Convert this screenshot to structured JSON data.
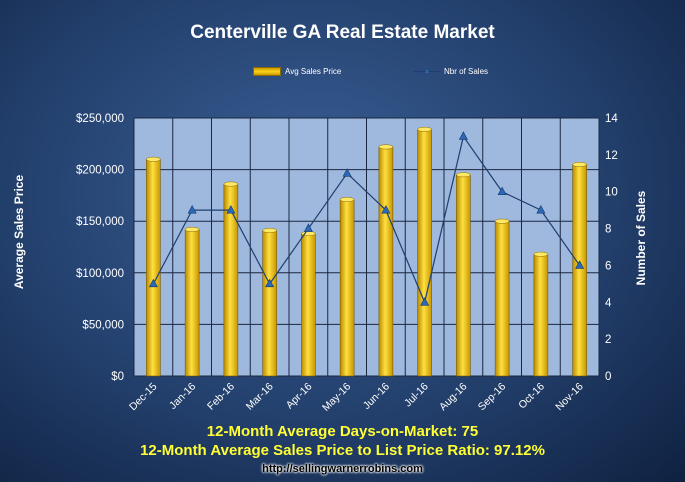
{
  "chart_data": {
    "type": "bar",
    "title": "Centerville GA Real Estate Market",
    "categories": [
      "Dec-15",
      "Jan-16",
      "Feb-16",
      "Mar-16",
      "Apr-16",
      "May-16",
      "Jun-16",
      "Jul-16",
      "Aug-16",
      "Sep-16",
      "Oct-16",
      "Nov-16"
    ],
    "series": [
      {
        "name": "Avg Sales Price",
        "type": "bar",
        "axis": "left",
        "values": [
          210000,
          142000,
          186000,
          141000,
          138000,
          171000,
          222000,
          239000,
          195000,
          150000,
          118000,
          205000
        ]
      },
      {
        "name": "Nbr of Sales",
        "type": "line",
        "axis": "right",
        "values": [
          5,
          9,
          9,
          5,
          8,
          11,
          9,
          4,
          13,
          10,
          9,
          6
        ]
      }
    ],
    "ylabel": "Average Sales Price",
    "y2label": "Number of Sales",
    "ylim": [
      0,
      250000
    ],
    "y2lim": [
      0,
      14
    ],
    "yticks": [
      "$0",
      "$50,000",
      "$100,000",
      "$150,000",
      "$200,000",
      "$250,000"
    ],
    "y2ticks": [
      "0",
      "2",
      "4",
      "6",
      "8",
      "10",
      "12",
      "14"
    ],
    "grid": true,
    "legend_position": "top",
    "colors": {
      "bar": "#f2c200",
      "line": "#1e3f70",
      "marker": "#2c68b8",
      "plot_bg": "#9fb8de",
      "footer_text": "#ffff33"
    }
  },
  "footer": {
    "line1": "12-Month Average Days-on-Market: 75",
    "line2": "12-Month Average Sales Price to List Price Ratio: 97.12%",
    "url": "http://sellingwarnerrobins.com"
  }
}
